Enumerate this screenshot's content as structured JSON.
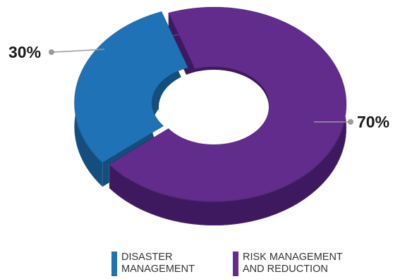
{
  "chart_data": {
    "type": "pie",
    "variant": "3d-donut",
    "categories": [
      "DISASTER\nMANAGEMENT",
      "RISK MANAGEMENT\nAND REDUCTION"
    ],
    "values": [
      30,
      70
    ],
    "value_labels": [
      "30%",
      "70%"
    ],
    "colors": [
      "#1f72b6",
      "#612c8c"
    ],
    "side_colors": [
      "#134e7e",
      "#3f1960"
    ],
    "title": "",
    "legend_position": "bottom"
  }
}
